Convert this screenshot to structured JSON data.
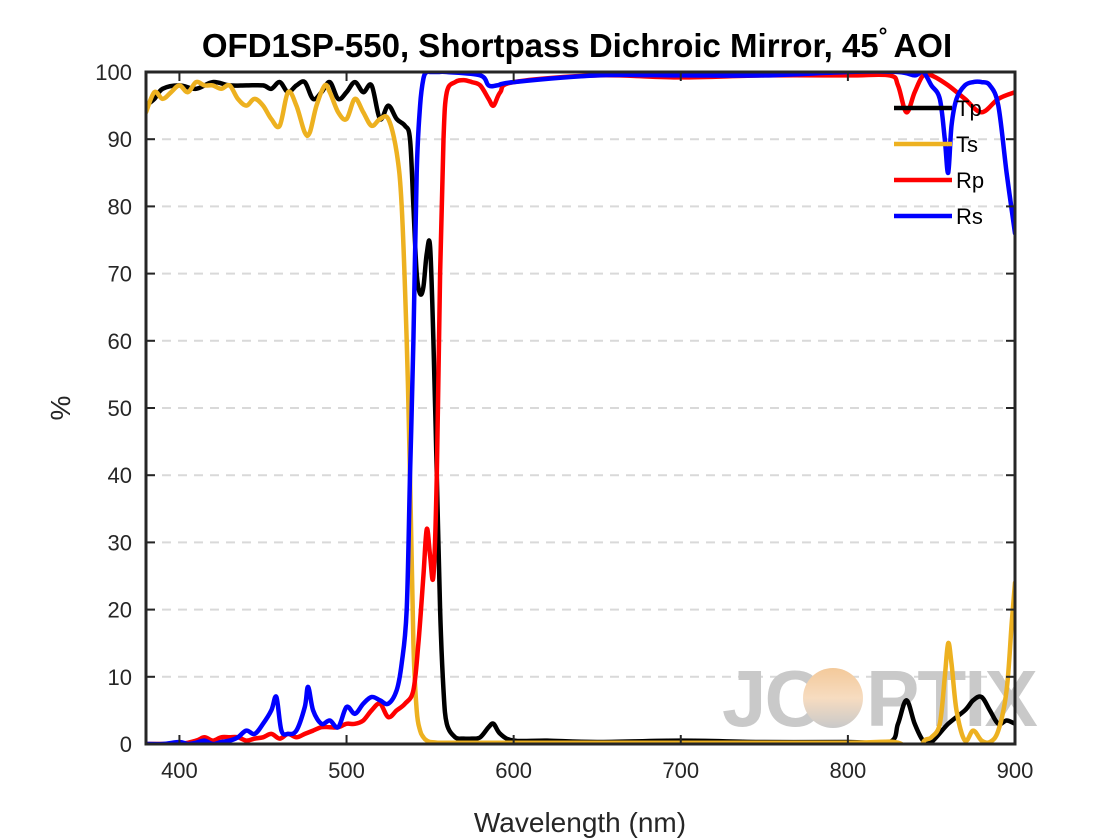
{
  "chart_data": {
    "type": "line",
    "title": "OFD1SP-550, Shortpass Dichroic Mirror, 45",
    "title_degree": "°",
    "title_suffix": "AOI",
    "xlabel": "Wavelength (nm)",
    "ylabel": "%",
    "xlim": [
      380,
      900
    ],
    "ylim": [
      0,
      100
    ],
    "xticks": [
      400,
      500,
      600,
      700,
      800,
      900
    ],
    "yticks": [
      0,
      10,
      20,
      30,
      40,
      50,
      60,
      70,
      80,
      90,
      100
    ],
    "grid": "horizontal dashed",
    "legend_position": "top-right",
    "watermark": "JCOPTIX",
    "series": [
      {
        "name": "Tp",
        "color": "#000000",
        "x": [
          380,
          385,
          390,
          400,
          410,
          420,
          430,
          440,
          450,
          455,
          460,
          465,
          470,
          475,
          480,
          485,
          490,
          495,
          500,
          505,
          510,
          515,
          520,
          525,
          530,
          535,
          538,
          540,
          542,
          544,
          546,
          548,
          550,
          552,
          554,
          556,
          558,
          560,
          565,
          570,
          575,
          580,
          585,
          588,
          592,
          600,
          620,
          650,
          700,
          750,
          800,
          825,
          830,
          835,
          840,
          845,
          850,
          860,
          870,
          875,
          880,
          885,
          890,
          895,
          900
        ],
        "y": [
          95,
          96,
          97.5,
          98,
          97.5,
          98.5,
          98,
          98,
          98,
          97.5,
          98.5,
          97,
          98,
          98.5,
          96,
          97,
          98.5,
          96,
          97,
          98.5,
          97,
          98,
          93,
          95,
          93,
          92,
          90,
          80,
          70,
          67,
          68,
          73,
          74,
          60,
          40,
          20,
          8,
          3,
          1,
          0.8,
          0.8,
          1,
          2.5,
          3,
          1.5,
          0.5,
          0.5,
          0.3,
          0.5,
          0.3,
          0.3,
          0.3,
          3,
          6.5,
          3,
          0.5,
          0.3,
          3,
          5,
          6.5,
          7,
          5,
          3,
          3.5,
          3
        ]
      },
      {
        "name": "Ts",
        "color": "#EDB120",
        "x": [
          380,
          385,
          390,
          395,
          400,
          405,
          410,
          415,
          420,
          425,
          430,
          435,
          440,
          445,
          450,
          455,
          460,
          465,
          470,
          475,
          478,
          482,
          487,
          490,
          495,
          500,
          505,
          510,
          515,
          520,
          525,
          530,
          533,
          536,
          538,
          540,
          542,
          544,
          546,
          548,
          550,
          555,
          560,
          600,
          700,
          800,
          830,
          835,
          840,
          845,
          850,
          855,
          858,
          860,
          862,
          865,
          870,
          875,
          880,
          885,
          890,
          895,
          898,
          900
        ],
        "y": [
          94,
          97,
          96,
          97,
          98,
          97,
          98.5,
          98,
          98,
          97.5,
          98,
          96,
          95,
          96,
          95,
          93,
          92,
          97,
          95,
          91,
          91,
          95,
          98,
          97,
          94,
          93,
          96,
          94,
          92,
          93,
          93,
          88,
          80,
          60,
          40,
          15,
          5,
          2,
          1,
          0.5,
          0.3,
          0.2,
          0.2,
          0.2,
          0.2,
          0.2,
          0.2,
          -2,
          -4,
          0.2,
          1,
          3,
          10,
          15,
          12,
          5,
          0.5,
          2,
          0.5,
          0.3,
          2,
          8,
          18,
          24
        ]
      },
      {
        "name": "Rp",
        "color": "#FF0000",
        "x": [
          380,
          390,
          400,
          410,
          415,
          420,
          425,
          430,
          435,
          440,
          445,
          450,
          455,
          460,
          465,
          470,
          475,
          480,
          485,
          490,
          495,
          500,
          505,
          510,
          515,
          520,
          525,
          530,
          535,
          540,
          543,
          546,
          548,
          550,
          552,
          554,
          556,
          558,
          560,
          565,
          570,
          575,
          580,
          585,
          588,
          592,
          600,
          650,
          700,
          750,
          800,
          825,
          830,
          835,
          840,
          845,
          850,
          860,
          870,
          880,
          890,
          900
        ],
        "y": [
          0,
          0,
          0,
          0.5,
          1,
          0.5,
          1,
          1,
          1,
          0.5,
          0.8,
          1,
          1.5,
          0.8,
          1.5,
          1,
          1.5,
          2,
          2.5,
          2.5,
          2.5,
          3,
          3,
          3.5,
          5,
          6,
          4,
          5,
          6,
          8,
          15,
          25,
          32,
          28,
          25,
          40,
          70,
          90,
          97,
          98.5,
          98.8,
          98.5,
          98,
          96,
          95,
          97,
          98.5,
          99.5,
          99.2,
          99.5,
          99.5,
          99.5,
          98,
          94,
          97,
          99.5,
          99.5,
          98,
          96,
          94,
          96,
          97
        ]
      },
      {
        "name": "Rs",
        "color": "#0000FF",
        "x": [
          380,
          390,
          400,
          405,
          410,
          415,
          420,
          425,
          430,
          435,
          440,
          445,
          450,
          455,
          458,
          461,
          465,
          470,
          475,
          477,
          480,
          485,
          490,
          495,
          500,
          505,
          510,
          515,
          520,
          525,
          530,
          533,
          536,
          538,
          540,
          542,
          544,
          546,
          548,
          550,
          555,
          560,
          580,
          585,
          590,
          600,
          650,
          700,
          750,
          800,
          830,
          840,
          845,
          850,
          855,
          858,
          860,
          862,
          865,
          870,
          875,
          880,
          885,
          890,
          895,
          900
        ],
        "y": [
          0,
          0,
          0.3,
          0,
          0.2,
          0.5,
          0,
          0.3,
          0.5,
          1,
          2,
          1.5,
          3,
          5,
          7,
          2,
          1.5,
          2,
          5.5,
          8.5,
          5,
          3,
          3.5,
          2.5,
          5.5,
          4.5,
          6,
          7,
          6.5,
          6,
          8,
          12,
          20,
          40,
          60,
          85,
          95,
          99,
          100,
          100,
          100,
          100,
          99.5,
          98,
          98,
          98.5,
          99.5,
          99.5,
          99.5,
          100,
          100,
          99.5,
          100,
          98,
          96,
          90,
          85,
          92,
          96,
          98,
          98.5,
          98.5,
          98,
          95,
          85,
          76
        ]
      }
    ]
  }
}
